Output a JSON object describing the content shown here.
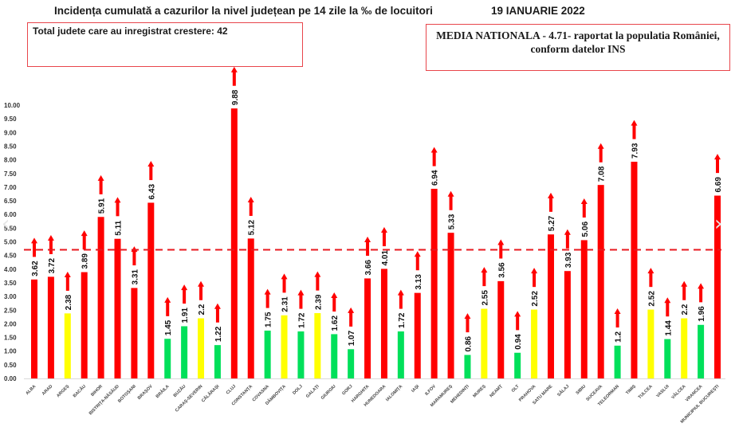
{
  "header": {
    "title": "Incidența cumulată a cazurilor la nivel județean pe 14 zile la ‰ de locuitori",
    "date": "19 IANUARIE 2022"
  },
  "info_left": "Total judete care au inregistrat crestere: 42",
  "info_right_line1": "MEDIA NATIONALA - 4.71-  raportat la populatia României,",
  "info_right_line2": "conform datelor INS",
  "nav": {
    "prev_icon": "‹",
    "next_icon": "›"
  },
  "colors": {
    "red": "#ff0000",
    "yellow": "#ffff00",
    "green": "#00e05a",
    "reference": "#e8191f"
  },
  "chart_data": {
    "type": "bar",
    "title": "Incidența cumulată a cazurilor la nivel județean pe 14 zile la ‰ de locuitori",
    "xlabel": "",
    "ylabel": "",
    "ylim": [
      0,
      10
    ],
    "ytick_step": 0.5,
    "yticks": [
      "0.00",
      "0.50",
      "1.00",
      "1.50",
      "2.00",
      "2.50",
      "3.00",
      "3.50",
      "4.00",
      "4.50",
      "5.00",
      "5.50",
      "6.00",
      "6.50",
      "7.00",
      "7.50",
      "8.00",
      "8.50",
      "9.00",
      "9.50",
      "10.00"
    ],
    "reference_line": {
      "label": "MEDIA NATIONALA",
      "value": 4.71,
      "style": "dashed"
    },
    "trend_marker": "up-arrow on every bar (increase)",
    "categories": [
      "ALBA",
      "ARAD",
      "ARGEȘ",
      "BACĂU",
      "BIHOR",
      "BISTRIȚA-NĂSĂUD",
      "BOTOȘANI",
      "BRAȘOV",
      "BRĂILA",
      "BUZĂU",
      "CARAȘ-SEVERIN",
      "CĂLĂRAȘI",
      "CLUJ",
      "CONSTANȚA",
      "COVASNA",
      "DÂMBOVIȚA",
      "DOLJ",
      "GALAȚI",
      "GIURGIU",
      "GORJ",
      "HARGHITA",
      "HUNEDOARA",
      "IALOMIȚA",
      "IAȘI",
      "ILFOV",
      "MARAMUREȘ",
      "MEHEDINȚI",
      "MUREȘ",
      "NEAMȚ",
      "OLT",
      "PRAHOVA",
      "SATU MARE",
      "SĂLAJ",
      "SIBIU",
      "SUCEAVA",
      "TELEORMAN",
      "TIMIȘ",
      "TULCEA",
      "VASLUI",
      "VÂLCEA",
      "VRANCEA",
      "MUNICIPIUL BUCUREȘTI"
    ],
    "values": [
      3.62,
      3.72,
      2.38,
      3.89,
      5.91,
      5.11,
      3.31,
      6.43,
      1.45,
      1.91,
      2.2,
      1.22,
      9.88,
      5.12,
      1.75,
      2.31,
      1.72,
      2.39,
      1.62,
      1.07,
      3.66,
      4.01,
      1.72,
      3.13,
      6.94,
      5.33,
      0.86,
      2.55,
      3.56,
      0.94,
      2.52,
      5.27,
      3.93,
      5.06,
      7.08,
      1.2,
      7.93,
      2.52,
      1.44,
      2.2,
      1.96,
      6.69
    ],
    "labels": [
      "3.62",
      "3.72",
      "2.38",
      "3.89",
      "5.91",
      "5.11",
      "3.31",
      "6.43",
      "1.45",
      "1.91",
      "2.2",
      "1.22",
      "9.88",
      "5.12",
      "1.75",
      "2.31",
      "1.72",
      "2.39",
      "1.62",
      "1.07",
      "3.66",
      "4.01",
      "1.72",
      "3.13",
      "6.94",
      "5.33",
      "0.86",
      "2.55",
      "3.56",
      "0.94",
      "2.52",
      "5.27",
      "3.93",
      "5.06",
      "7.08",
      "1.2",
      "7.93",
      "2.52",
      "1.44",
      "2.2",
      "1.96",
      "6.69"
    ],
    "colors": [
      "red",
      "red",
      "yellow",
      "red",
      "red",
      "red",
      "red",
      "red",
      "green",
      "green",
      "yellow",
      "green",
      "red",
      "red",
      "green",
      "yellow",
      "green",
      "yellow",
      "green",
      "green",
      "red",
      "red",
      "green",
      "red",
      "red",
      "red",
      "green",
      "yellow",
      "red",
      "green",
      "yellow",
      "red",
      "red",
      "red",
      "red",
      "green",
      "red",
      "yellow",
      "green",
      "yellow",
      "green",
      "red"
    ],
    "legend": "none",
    "grid": false
  }
}
